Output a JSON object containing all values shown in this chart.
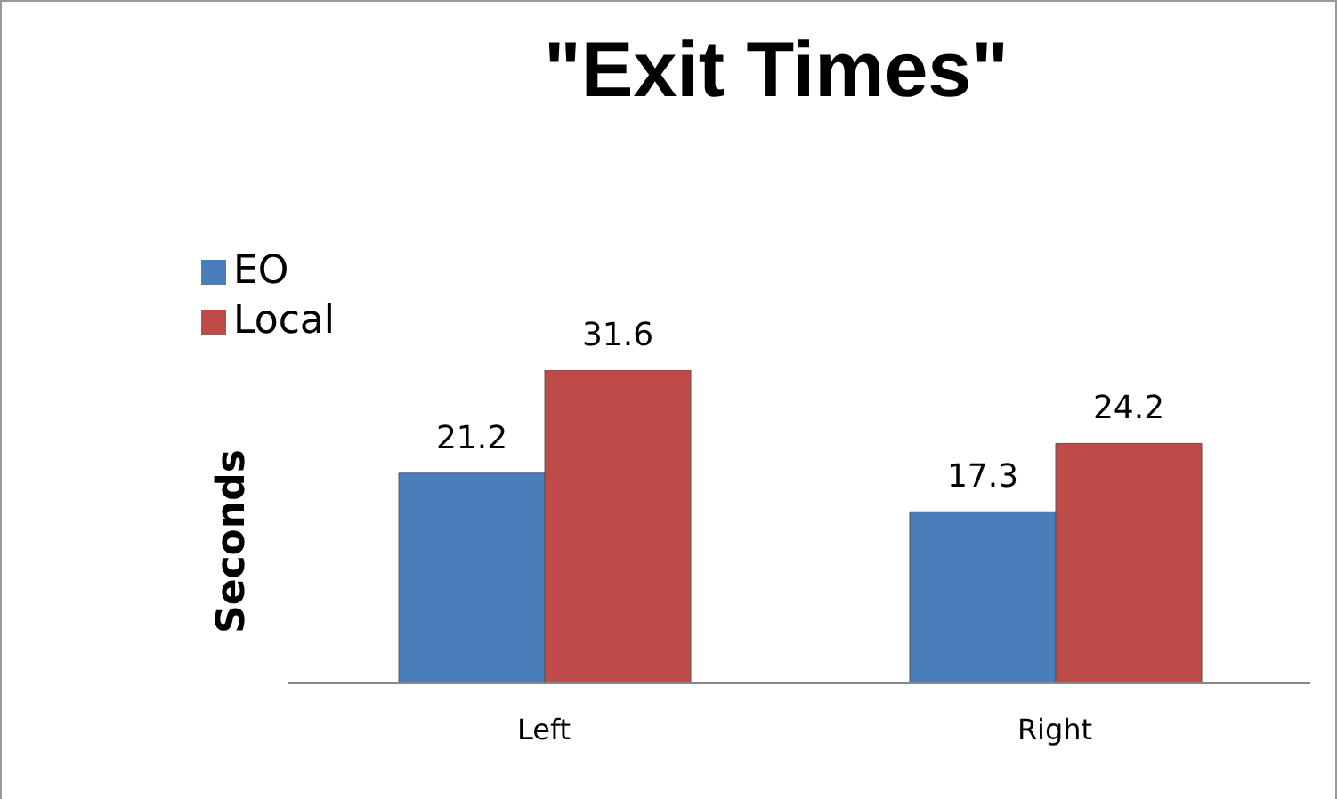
{
  "chart_data": {
    "type": "bar",
    "title": "\"Exit Times\"",
    "ylabel": "Seconds",
    "categories": [
      "Left",
      "Right"
    ],
    "series": [
      {
        "name": "EO",
        "color": "#4a7ebb",
        "values": [
          21.2,
          17.3
        ]
      },
      {
        "name": "Local",
        "color": "#be4b48",
        "values": [
          31.6,
          24.2
        ]
      }
    ],
    "data_labels": true,
    "legend": "top left",
    "grid": false
  }
}
